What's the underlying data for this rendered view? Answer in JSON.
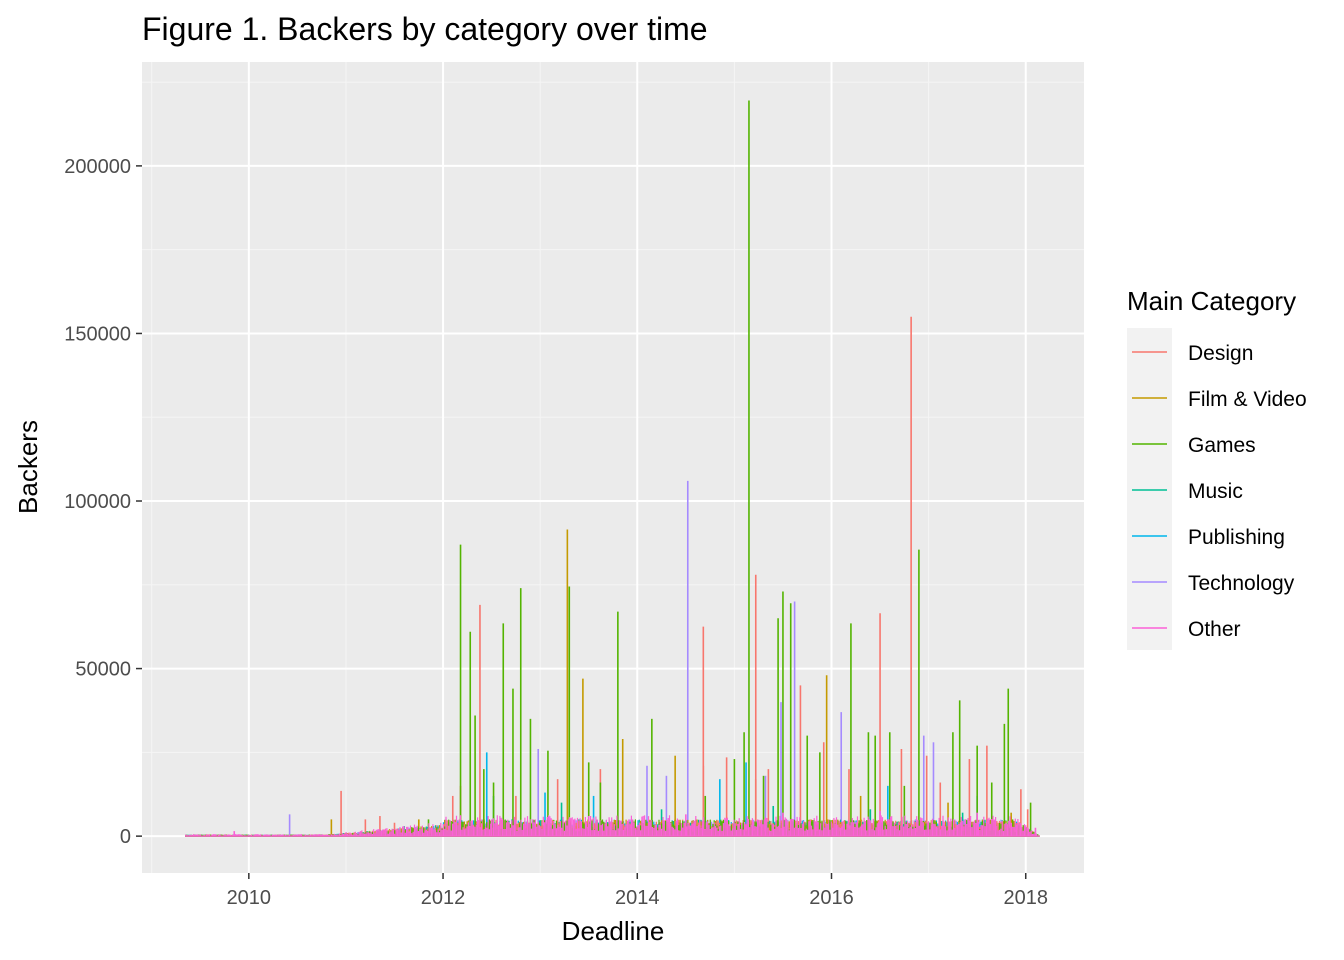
{
  "chart_data": {
    "type": "line",
    "title": "Figure 1. Backers by category over time",
    "xlabel": "Deadline",
    "ylabel": "Backers",
    "xlim": [
      2008.9,
      2018.6
    ],
    "ylim": [
      -11000,
      231000
    ],
    "x_ticks": [
      2010,
      2012,
      2014,
      2016,
      2018
    ],
    "x_tick_labels": [
      "2010",
      "2012",
      "2014",
      "2016",
      "2018"
    ],
    "y_ticks": [
      0,
      50000,
      100000,
      150000,
      200000
    ],
    "y_tick_labels": [
      "0",
      "50000",
      "100000",
      "150000",
      "200000"
    ],
    "grid": true,
    "legend": {
      "title": "Main Category",
      "position": "right",
      "entries": [
        "Design",
        "Film & Video",
        "Games",
        "Music",
        "Publishing",
        "Technology",
        "Other"
      ]
    },
    "colors": {
      "Design": "#F8766D",
      "Film & Video": "#C49A00",
      "Games": "#53B400",
      "Music": "#00C094",
      "Publishing": "#00B6EB",
      "Technology": "#A58AFF",
      "Other": "#FB61D7"
    },
    "series": [
      {
        "name": "Technology",
        "spikes": [
          [
            2010.42,
            6500
          ],
          [
            2014.52,
            106000
          ],
          [
            2015.48,
            40000
          ],
          [
            2015.62,
            70000
          ],
          [
            2016.1,
            37000
          ],
          [
            2016.95,
            30000
          ],
          [
            2017.05,
            28000
          ],
          [
            2014.1,
            21000
          ],
          [
            2014.3,
            18000
          ],
          [
            2012.98,
            26000
          ],
          [
            2015.32,
            18000
          ]
        ]
      },
      {
        "name": "Publishing",
        "spikes": [
          [
            2012.45,
            25000
          ],
          [
            2013.05,
            13000
          ],
          [
            2013.55,
            12000
          ],
          [
            2014.85,
            17000
          ],
          [
            2015.12,
            22000
          ],
          [
            2016.58,
            15000
          ],
          [
            2017.5,
            12000
          ],
          [
            2011.9,
            3000
          ]
        ]
      },
      {
        "name": "Music",
        "spikes": [
          [
            2012.52,
            12000
          ],
          [
            2013.22,
            10000
          ],
          [
            2014.25,
            8000
          ],
          [
            2015.4,
            9000
          ],
          [
            2016.4,
            8000
          ],
          [
            2017.35,
            7000
          ],
          [
            2011.6,
            3000
          ]
        ]
      },
      {
        "name": "Film & Video",
        "spikes": [
          [
            2010.85,
            5000
          ],
          [
            2013.28,
            91500
          ],
          [
            2013.44,
            47000
          ],
          [
            2013.85,
            29000
          ],
          [
            2014.39,
            24000
          ],
          [
            2015.95,
            48000
          ],
          [
            2015.22,
            17000
          ],
          [
            2016.3,
            12000
          ],
          [
            2017.2,
            10000
          ],
          [
            2017.85,
            7000
          ],
          [
            2011.75,
            5000
          ]
        ]
      },
      {
        "name": "Design",
        "spikes": [
          [
            2010.95,
            13500
          ],
          [
            2011.2,
            5000
          ],
          [
            2011.35,
            6000
          ],
          [
            2011.5,
            4000
          ],
          [
            2012.1,
            12000
          ],
          [
            2012.18,
            15000
          ],
          [
            2012.38,
            69000
          ],
          [
            2012.75,
            12000
          ],
          [
            2013.18,
            17000
          ],
          [
            2013.62,
            20000
          ],
          [
            2014.68,
            21000
          ],
          [
            2014.68,
            62500
          ],
          [
            2014.92,
            23500
          ],
          [
            2015.22,
            78000
          ],
          [
            2015.35,
            20000
          ],
          [
            2015.68,
            45000
          ],
          [
            2015.92,
            28000
          ],
          [
            2016.18,
            20000
          ],
          [
            2016.5,
            66500
          ],
          [
            2016.72,
            26000
          ],
          [
            2016.82,
            155000
          ],
          [
            2016.98,
            24000
          ],
          [
            2017.12,
            16000
          ],
          [
            2017.42,
            23000
          ],
          [
            2017.6,
            27000
          ],
          [
            2017.95,
            14000
          ],
          [
            2018.02,
            8000
          ]
        ]
      },
      {
        "name": "Games",
        "spikes": [
          [
            2011.85,
            5000
          ],
          [
            2012.18,
            87000
          ],
          [
            2012.28,
            61000
          ],
          [
            2012.33,
            36000
          ],
          [
            2012.42,
            20000
          ],
          [
            2012.52,
            16000
          ],
          [
            2012.62,
            63500
          ],
          [
            2012.72,
            44000
          ],
          [
            2012.8,
            74000
          ],
          [
            2012.9,
            35000
          ],
          [
            2013.08,
            25500
          ],
          [
            2013.3,
            74500
          ],
          [
            2013.5,
            22000
          ],
          [
            2013.62,
            16000
          ],
          [
            2013.8,
            67000
          ],
          [
            2014.15,
            35000
          ],
          [
            2014.7,
            12000
          ],
          [
            2015.0,
            23000
          ],
          [
            2015.1,
            31000
          ],
          [
            2015.15,
            219500
          ],
          [
            2015.3,
            18000
          ],
          [
            2015.45,
            65000
          ],
          [
            2015.5,
            73000
          ],
          [
            2015.58,
            69500
          ],
          [
            2015.75,
            30000
          ],
          [
            2015.88,
            25000
          ],
          [
            2016.2,
            63500
          ],
          [
            2016.38,
            31000
          ],
          [
            2016.45,
            30000
          ],
          [
            2016.6,
            31000
          ],
          [
            2016.75,
            15000
          ],
          [
            2016.9,
            85500
          ],
          [
            2017.25,
            31000
          ],
          [
            2017.32,
            40500
          ],
          [
            2017.5,
            27000
          ],
          [
            2017.65,
            16000
          ],
          [
            2017.78,
            33500
          ],
          [
            2017.82,
            44000
          ],
          [
            2018.05,
            10000
          ]
        ]
      },
      {
        "name": "Other",
        "spikes": [
          [
            2009.85,
            1500
          ],
          [
            2012.5,
            5000
          ],
          [
            2013.5,
            6000
          ],
          [
            2014.5,
            6500
          ],
          [
            2015.5,
            7000
          ],
          [
            2016.5,
            7500
          ],
          [
            2017.5,
            7000
          ],
          [
            2018.1,
            2500
          ]
        ]
      }
    ]
  }
}
